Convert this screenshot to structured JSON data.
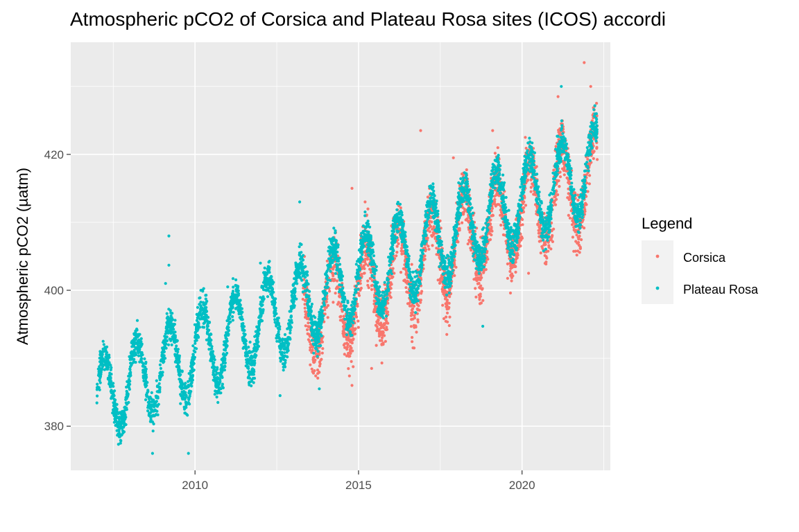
{
  "chart_data": {
    "type": "scatter",
    "title": "Atmospheric pCO2 of Corsica and Plateau Rosa sites (ICOS) accordi",
    "xlabel": "",
    "ylabel": "Atmospheric pCO2 (µatm)",
    "xlim": [
      2006.2,
      2022.7
    ],
    "ylim": [
      373.5,
      436.5
    ],
    "x_ticks": [
      2010,
      2015,
      2020
    ],
    "x_tick_labels": [
      "2010",
      "2015",
      "2020"
    ],
    "y_ticks": [
      380,
      400,
      420
    ],
    "y_tick_labels": [
      "380",
      "400",
      "420"
    ],
    "grid": true,
    "legend": {
      "title": "Legend",
      "position": "right"
    },
    "series": [
      {
        "name": "Corsica",
        "color": "#F8766D",
        "x_range": [
          2013.3,
          2022.3
        ],
        "trend": {
          "start_year": 2013.3,
          "start_value": 395.5,
          "slope_per_year": 2.4
        },
        "seasonal_amplitude": 6.5,
        "noise": 3.0,
        "peaks": [
          [
            2014.3,
            408.5
          ],
          [
            2014.8,
            415.0
          ],
          [
            2015.2,
            413.0
          ],
          [
            2016.9,
            423.5
          ],
          [
            2017.9,
            419.5
          ],
          [
            2019.1,
            423.5
          ],
          [
            2020.1,
            422.5
          ],
          [
            2021.1,
            428.5
          ],
          [
            2021.9,
            433.5
          ],
          [
            2022.1,
            430.0
          ],
          [
            2014.8,
            386.0
          ],
          [
            2015.4,
            388.5
          ],
          [
            2016.7,
            391.5
          ],
          [
            2017.7,
            393.5
          ],
          [
            2020.2,
            402.5
          ]
        ]
      },
      {
        "name": "Plateau Rosa",
        "color": "#00BFC4",
        "x_range": [
          2007.0,
          2022.3
        ],
        "trend": {
          "start_year": 2007.0,
          "start_value": 384.0,
          "slope_per_year": 2.25
        },
        "seasonal_amplitude": 6.0,
        "noise": 1.8,
        "peaks": [
          [
            2009.2,
            408.0
          ],
          [
            2009.2,
            403.7
          ],
          [
            2009.1,
            401.0
          ],
          [
            2013.2,
            413.0
          ],
          [
            2012.0,
            404.0
          ],
          [
            2012.6,
            384.5
          ],
          [
            2008.7,
            376.0
          ],
          [
            2009.8,
            376.0
          ],
          [
            2018.8,
            394.7
          ],
          [
            2021.2,
            430.0
          ],
          [
            2007.1,
            391.0
          ],
          [
            2011.0,
            400.5
          ],
          [
            2013.8,
            385.5
          ]
        ]
      }
    ]
  }
}
